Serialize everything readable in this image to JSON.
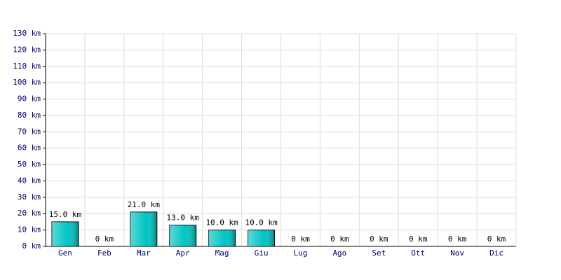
{
  "chart_data": {
    "type": "bar",
    "categories": [
      "Gen",
      "Feb",
      "Mar",
      "Apr",
      "Mag",
      "Giu",
      "Lug",
      "Ago",
      "Set",
      "Ott",
      "Nov",
      "Dic"
    ],
    "values": [
      15,
      0,
      21,
      13,
      10,
      10,
      0,
      0,
      0,
      0,
      0,
      0
    ],
    "value_labels": [
      "15.0 km",
      "0 km",
      "21.0 km",
      "13.0 km",
      "10.0 km",
      "10.0 km",
      "0 km",
      "0 km",
      "0 km",
      "0 km",
      "0 km",
      "0 km"
    ],
    "color": "#00c4c4",
    "ylim": [
      0,
      130
    ],
    "yticks": [
      {
        "value": 0,
        "label": "0 km"
      },
      {
        "value": 10,
        "label": "10 km"
      },
      {
        "value": 20,
        "label": "20 km"
      },
      {
        "value": 30,
        "label": "30 km"
      },
      {
        "value": 40,
        "label": "40 km"
      },
      {
        "value": 50,
        "label": "50 km"
      },
      {
        "value": 60,
        "label": "60 km"
      },
      {
        "value": 70,
        "label": "70 km"
      },
      {
        "value": 80,
        "label": "80 km"
      },
      {
        "value": 90,
        "label": "90 km"
      },
      {
        "value": 100,
        "label": "100 km"
      },
      {
        "value": 110,
        "label": "110 km"
      },
      {
        "value": 120,
        "label": "120 km"
      },
      {
        "value": 130,
        "label": "130 km"
      }
    ],
    "grid": true
  }
}
